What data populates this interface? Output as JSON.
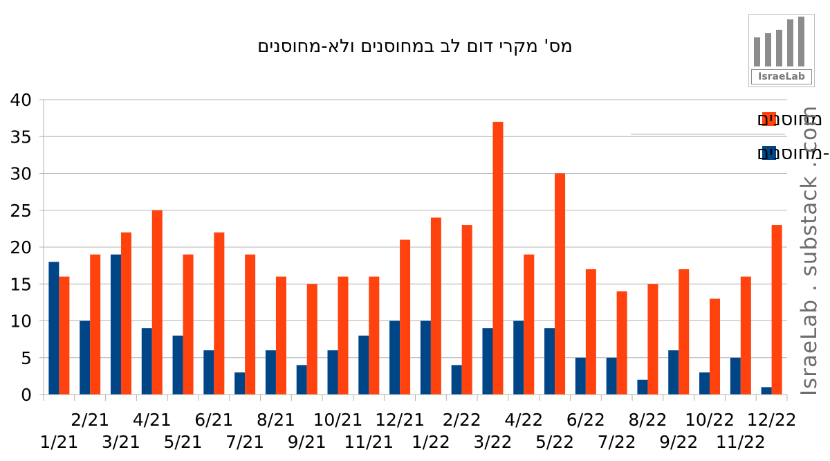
{
  "title": "מס' מקרי דום לב במחוסנים ולא-מחוסנים",
  "logo_text": "IsraeLab",
  "watermark": "IsraeLab . substack . com",
  "chart_data": {
    "type": "bar",
    "title": "מס' מקרי דום לב במחוסנים ולא-מחוסנים",
    "categories": [
      "1/21",
      "2/21",
      "3/21",
      "4/21",
      "5/21",
      "6/21",
      "7/21",
      "8/21",
      "9/21",
      "10/21",
      "11/21",
      "12/21",
      "1/22",
      "2/22",
      "3/22",
      "4/22",
      "5/22",
      "6/22",
      "7/22",
      "8/22",
      "9/22",
      "10/22",
      "11/22",
      "12/22"
    ],
    "series": [
      {
        "name": "לא-מחוסנים",
        "color": "#004586",
        "values": [
          18,
          10,
          19,
          9,
          8,
          6,
          3,
          6,
          4,
          6,
          8,
          10,
          10,
          4,
          9,
          10,
          9,
          5,
          5,
          2,
          6,
          3,
          5,
          1
        ]
      },
      {
        "name": "מחוסנים",
        "color": "#ff420e",
        "values": [
          16,
          19,
          22,
          25,
          19,
          22,
          19,
          16,
          15,
          16,
          16,
          21,
          24,
          23,
          37,
          19,
          30,
          17,
          14,
          15,
          17,
          13,
          16,
          23
        ]
      }
    ],
    "ylim": [
      0,
      40
    ],
    "yticks": [
      0,
      5,
      10,
      15,
      20,
      25,
      30,
      35,
      40
    ],
    "grid": true,
    "legend": "top-right",
    "xlabel": "",
    "ylabel": ""
  }
}
